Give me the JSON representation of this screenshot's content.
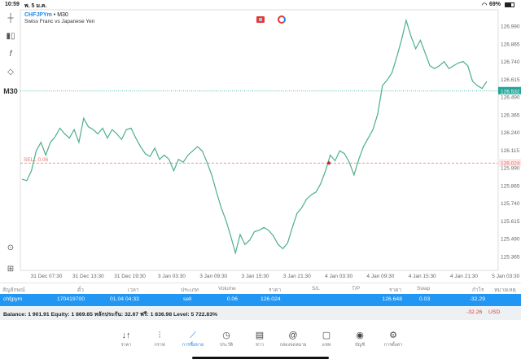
{
  "status": {
    "time": "10:59",
    "date": "พ. 5 ม.ค.",
    "battery": "69%"
  },
  "chart": {
    "symbol": "CHFJPYm",
    "timeframe": "M30",
    "description": "Swiss Franc vs Japanese Yen",
    "timeframe_label": "M30",
    "price_ticks": [
      "126.990",
      "126.865",
      "126.740",
      "126.615",
      "126.490",
      "126.365",
      "126.240",
      "126.115",
      "125.990",
      "125.865",
      "125.740",
      "125.615",
      "125.490",
      "125.365"
    ],
    "time_ticks": [
      "31 Dec 07:30",
      "31 Dec 13:30",
      "31 Dec 19:30",
      "3 Jan 03:30",
      "3 Jan 09:30",
      "3 Jan 15:30",
      "3 Jan 21:30",
      "4 Jan 03:30",
      "4 Jan 09:30",
      "4 Jan 15:30",
      "4 Jan 21:30",
      "5 Jan 03:30"
    ],
    "bid": "126.532",
    "bid_color": "#26a69a",
    "line_color": "#4caf8a",
    "order_line": {
      "label": "SELL 0.06",
      "price": "126.024",
      "color": "#e57373"
    },
    "prices": [
      125.91,
      125.9,
      125.97,
      126.11,
      126.17,
      126.08,
      126.17,
      126.21,
      126.27,
      126.23,
      126.2,
      126.26,
      126.17,
      126.34,
      126.28,
      126.26,
      126.23,
      126.27,
      126.2,
      126.26,
      126.23,
      126.19,
      126.26,
      126.27,
      126.2,
      126.14,
      126.09,
      126.07,
      126.13,
      126.05,
      126.08,
      126.05,
      125.97,
      126.05,
      126.03,
      126.08,
      126.11,
      126.14,
      126.11,
      126.03,
      125.94,
      125.82,
      125.71,
      125.62,
      125.51,
      125.39,
      125.52,
      125.45,
      125.48,
      125.54,
      125.55,
      125.57,
      125.55,
      125.51,
      125.45,
      125.42,
      125.46,
      125.57,
      125.67,
      125.71,
      125.77,
      125.8,
      125.82,
      125.88,
      125.97,
      126.08,
      126.04,
      126.11,
      126.09,
      126.03,
      125.94,
      126.05,
      126.14,
      126.2,
      126.26,
      126.37,
      126.57,
      126.61,
      126.66,
      126.77,
      126.89,
      127.03,
      126.92,
      126.83,
      126.89,
      126.8,
      126.71,
      126.69,
      126.71,
      126.74,
      126.69,
      126.71,
      126.73,
      126.74,
      126.71,
      126.6,
      126.57,
      126.55,
      126.6
    ]
  },
  "toolbar": [
    "crosshair-icon",
    "candles-icon",
    "indicator-icon",
    "objects-icon"
  ],
  "table": {
    "headers": [
      "สัญลักษณ์",
      "ตั๋ว",
      "เวลา",
      "ประเภท",
      "Volume",
      "ราคา",
      "S/L",
      "T/P",
      "ราคา",
      "Swap",
      "กำไร",
      "หมายเหตุ"
    ],
    "row": {
      "symbol": "chfjpym",
      "ticket": "170419700",
      "time": "01.04 04:33",
      "type": "sell",
      "volume": "0.06",
      "open_price": "126.024",
      "price": "126.648",
      "swap": "0.03",
      "profit": "-32.29"
    },
    "summary": "Balance: 1 901.91 Equity: 1 869.65 หลักประกัน: 32.67 ฟรี: 1 836.98 Level: 5 722.83%",
    "total": "-32.26",
    "currency": "USD"
  },
  "nav": [
    {
      "label": "ราคา",
      "icon": "↓↑"
    },
    {
      "label": "กราฟ",
      "icon": "⫶"
    },
    {
      "label": "การซื้อขาย",
      "icon": "⟋",
      "active": true
    },
    {
      "label": "ประวัติ",
      "icon": "◷"
    },
    {
      "label": "ข่าว",
      "icon": "▤"
    },
    {
      "label": "กล่องจดหมาย",
      "icon": "@"
    },
    {
      "label": "แชท",
      "icon": "▢"
    },
    {
      "label": "บัญชี",
      "icon": "◉"
    },
    {
      "label": "การตั้งค่า",
      "icon": "⚙"
    }
  ]
}
